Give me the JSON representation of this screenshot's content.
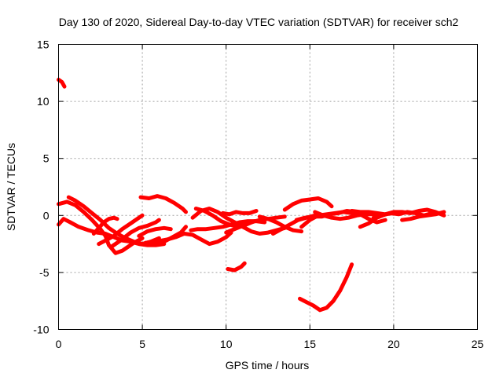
{
  "chart_data": {
    "type": "scatter",
    "title": "Day 130 of 2020, Sidereal Day-to-day VTEC variation (SDTVAR) for receiver sch2",
    "xlabel": "GPS time / hours",
    "ylabel": "SDTVAR / TECUs",
    "xlim": [
      0,
      25
    ],
    "ylim": [
      -10,
      15
    ],
    "xticks": [
      "0",
      "5",
      "10",
      "15",
      "20",
      "25"
    ],
    "yticks": [
      "-10",
      "-5",
      "0",
      "5",
      "10",
      "15"
    ],
    "grid": true,
    "legend": "none",
    "color": "#ff0000",
    "series": [
      {
        "name": "arc-1",
        "points": [
          [
            0.0,
            11.9
          ],
          [
            0.2,
            11.7
          ],
          [
            0.35,
            11.3
          ]
        ]
      },
      {
        "name": "arc-2",
        "points": [
          [
            0.0,
            1.0
          ],
          [
            0.5,
            1.2
          ],
          [
            1.0,
            0.9
          ],
          [
            1.5,
            0.3
          ],
          [
            2.0,
            -0.4
          ],
          [
            2.5,
            -1.2
          ],
          [
            2.8,
            -1.8
          ],
          [
            3.0,
            -2.6
          ],
          [
            3.4,
            -3.3
          ],
          [
            3.8,
            -3.1
          ],
          [
            4.2,
            -2.7
          ],
          [
            4.5,
            -2.4
          ],
          [
            5.0,
            -2.0
          ]
        ]
      },
      {
        "name": "arc-3",
        "points": [
          [
            0.6,
            1.6
          ],
          [
            1.0,
            1.3
          ],
          [
            1.5,
            0.8
          ],
          [
            2.0,
            0.2
          ],
          [
            2.5,
            -0.4
          ],
          [
            3.0,
            -1.1
          ],
          [
            3.5,
            -1.6
          ],
          [
            4.0,
            -2.0
          ],
          [
            4.5,
            -2.3
          ],
          [
            5.0,
            -2.5
          ],
          [
            5.5,
            -2.3
          ],
          [
            6.0,
            -2.0
          ]
        ]
      },
      {
        "name": "arc-4",
        "points": [
          [
            0.0,
            -0.8
          ],
          [
            0.3,
            -0.3
          ],
          [
            0.7,
            -0.6
          ],
          [
            1.2,
            -1.0
          ],
          [
            1.8,
            -1.3
          ],
          [
            2.3,
            -1.5
          ],
          [
            2.8,
            -1.6
          ],
          [
            3.3,
            -1.9
          ],
          [
            3.8,
            -2.2
          ],
          [
            4.3,
            -2.3
          ],
          [
            4.8,
            -2.5
          ],
          [
            5.3,
            -2.6
          ],
          [
            5.8,
            -2.6
          ],
          [
            6.3,
            -2.5
          ]
        ]
      },
      {
        "name": "arc-5",
        "points": [
          [
            2.1,
            -1.6
          ],
          [
            2.4,
            -1.1
          ],
          [
            2.7,
            -0.6
          ],
          [
            3.0,
            -0.3
          ],
          [
            3.3,
            -0.2
          ],
          [
            3.5,
            -0.3
          ]
        ]
      },
      {
        "name": "arc-6",
        "points": [
          [
            2.4,
            -2.5
          ],
          [
            2.8,
            -2.2
          ],
          [
            3.3,
            -1.8
          ],
          [
            3.8,
            -1.2
          ],
          [
            4.3,
            -0.7
          ],
          [
            4.8,
            -0.2
          ],
          [
            5.0,
            0.0
          ]
        ]
      },
      {
        "name": "arc-7",
        "points": [
          [
            3.2,
            -2.7
          ],
          [
            3.7,
            -2.2
          ],
          [
            4.3,
            -1.5
          ],
          [
            4.8,
            -1.1
          ],
          [
            5.3,
            -0.9
          ],
          [
            5.8,
            -0.6
          ],
          [
            6.0,
            -0.4
          ]
        ]
      },
      {
        "name": "arc-8",
        "points": [
          [
            4.8,
            -1.8
          ],
          [
            5.3,
            -1.4
          ],
          [
            5.8,
            -1.2
          ],
          [
            6.3,
            -1.1
          ],
          [
            6.7,
            -1.2
          ]
        ]
      },
      {
        "name": "arc-9",
        "points": [
          [
            4.9,
            1.6
          ],
          [
            5.4,
            1.5
          ],
          [
            5.9,
            1.7
          ],
          [
            6.4,
            1.5
          ],
          [
            6.9,
            1.1
          ],
          [
            7.4,
            0.6
          ],
          [
            7.6,
            0.3
          ]
        ]
      },
      {
        "name": "arc-10",
        "points": [
          [
            5.2,
            -2.4
          ],
          [
            5.8,
            -2.3
          ],
          [
            6.5,
            -2.1
          ],
          [
            7.0,
            -1.9
          ],
          [
            7.5,
            -1.6
          ],
          [
            8.0,
            -1.7
          ],
          [
            8.5,
            -2.1
          ],
          [
            9.0,
            -2.5
          ],
          [
            9.5,
            -2.3
          ],
          [
            10.0,
            -1.9
          ],
          [
            10.3,
            -1.5
          ]
        ]
      },
      {
        "name": "arc-11",
        "points": [
          [
            6.3,
            -2.3
          ],
          [
            6.8,
            -1.9
          ],
          [
            7.3,
            -1.5
          ],
          [
            7.6,
            -1.0
          ]
        ]
      },
      {
        "name": "arc-12",
        "points": [
          [
            7.9,
            -1.3
          ],
          [
            8.3,
            -1.2
          ],
          [
            8.8,
            -1.2
          ],
          [
            9.3,
            -1.1
          ],
          [
            9.8,
            -1.0
          ],
          [
            10.3,
            -0.8
          ],
          [
            10.8,
            -0.6
          ],
          [
            11.3,
            -0.5
          ],
          [
            11.8,
            -0.5
          ],
          [
            12.3,
            -0.6
          ]
        ]
      },
      {
        "name": "arc-13",
        "points": [
          [
            8.0,
            -0.2
          ],
          [
            8.5,
            0.4
          ],
          [
            9.0,
            0.6
          ],
          [
            9.5,
            0.3
          ],
          [
            10.0,
            -0.2
          ],
          [
            10.5,
            -0.6
          ],
          [
            11.0,
            -1.0
          ],
          [
            11.5,
            -1.4
          ],
          [
            12.0,
            -1.6
          ],
          [
            12.5,
            -1.5
          ],
          [
            13.0,
            -1.3
          ],
          [
            13.5,
            -1.1
          ]
        ]
      },
      {
        "name": "arc-14",
        "points": [
          [
            8.2,
            0.6
          ],
          [
            8.7,
            0.4
          ],
          [
            9.2,
            0.0
          ],
          [
            9.7,
            -0.5
          ],
          [
            10.2,
            -0.8
          ],
          [
            10.7,
            -1.0
          ],
          [
            11.2,
            -0.8
          ],
          [
            11.7,
            -0.5
          ]
        ]
      },
      {
        "name": "arc-15",
        "points": [
          [
            9.8,
            0.2
          ],
          [
            10.2,
            0.1
          ],
          [
            10.6,
            0.3
          ],
          [
            11.0,
            0.2
          ],
          [
            11.4,
            0.2
          ],
          [
            11.8,
            0.4
          ]
        ]
      },
      {
        "name": "arc-16",
        "points": [
          [
            10.0,
            -1.5
          ],
          [
            10.5,
            -1.2
          ],
          [
            11.0,
            -0.9
          ],
          [
            11.5,
            -0.6
          ],
          [
            12.0,
            -0.4
          ],
          [
            12.5,
            -0.3
          ],
          [
            13.0,
            -0.2
          ],
          [
            13.5,
            -0.1
          ]
        ]
      },
      {
        "name": "arc-17",
        "points": [
          [
            12.0,
            -0.1
          ],
          [
            12.5,
            -0.3
          ],
          [
            13.0,
            -0.6
          ],
          [
            13.5,
            -1.0
          ],
          [
            14.0,
            -1.3
          ],
          [
            14.5,
            -1.4
          ]
        ]
      },
      {
        "name": "arc-18",
        "points": [
          [
            12.8,
            -1.6
          ],
          [
            13.3,
            -1.2
          ],
          [
            13.8,
            -0.8
          ],
          [
            14.3,
            -0.4
          ],
          [
            14.8,
            -0.2
          ],
          [
            15.3,
            0.0
          ]
        ]
      },
      {
        "name": "arc-19",
        "points": [
          [
            13.5,
            0.5
          ],
          [
            14.0,
            1.0
          ],
          [
            14.5,
            1.3
          ],
          [
            15.0,
            1.4
          ],
          [
            15.5,
            1.5
          ],
          [
            16.0,
            1.2
          ],
          [
            16.3,
            0.8
          ]
        ]
      },
      {
        "name": "arc-20",
        "points": [
          [
            14.5,
            -1.0
          ],
          [
            15.0,
            -0.4
          ],
          [
            15.5,
            0.0
          ],
          [
            16.0,
            0.1
          ],
          [
            16.5,
            0.2
          ],
          [
            17.0,
            0.3
          ],
          [
            17.5,
            0.2
          ],
          [
            18.0,
            0.1
          ],
          [
            18.5,
            -0.3
          ],
          [
            19.0,
            -0.6
          ],
          [
            19.5,
            -0.4
          ]
        ]
      },
      {
        "name": "arc-21",
        "points": [
          [
            14.2,
            -0.4
          ],
          [
            14.7,
            -0.2
          ],
          [
            15.2,
            -0.1
          ],
          [
            15.7,
            -0.1
          ],
          [
            16.2,
            0.1
          ],
          [
            16.7,
            0.2
          ],
          [
            17.2,
            0.4
          ],
          [
            17.7,
            0.3
          ],
          [
            18.2,
            0.0
          ]
        ]
      },
      {
        "name": "arc-22",
        "points": [
          [
            15.3,
            0.3
          ],
          [
            15.8,
            0.0
          ],
          [
            16.3,
            -0.2
          ],
          [
            16.8,
            -0.3
          ],
          [
            17.3,
            -0.2
          ],
          [
            17.8,
            0.0
          ],
          [
            18.3,
            0.1
          ],
          [
            18.8,
            0.1
          ],
          [
            19.3,
            0.0
          ]
        ]
      },
      {
        "name": "arc-23",
        "points": [
          [
            17.5,
            0.4
          ],
          [
            18.0,
            0.3
          ],
          [
            18.5,
            0.3
          ],
          [
            19.0,
            0.2
          ],
          [
            19.5,
            0.1
          ],
          [
            20.0,
            0.3
          ],
          [
            20.5,
            0.3
          ],
          [
            21.0,
            0.2
          ],
          [
            21.5,
            0.4
          ],
          [
            22.0,
            0.5
          ],
          [
            22.5,
            0.3
          ],
          [
            23.0,
            0.0
          ]
        ]
      },
      {
        "name": "arc-24",
        "points": [
          [
            18.8,
            -0.2
          ],
          [
            19.3,
            0.0
          ],
          [
            19.8,
            0.2
          ],
          [
            20.3,
            0.1
          ],
          [
            20.8,
            0.3
          ],
          [
            21.3,
            0.2
          ],
          [
            21.8,
            0.0
          ],
          [
            22.3,
            0.2
          ],
          [
            22.8,
            0.2
          ]
        ]
      },
      {
        "name": "arc-25",
        "points": [
          [
            18.0,
            -1.0
          ],
          [
            18.5,
            -0.7
          ],
          [
            19.0,
            -0.2
          ],
          [
            19.5,
            0.1
          ],
          [
            20.0,
            0.2
          ]
        ]
      },
      {
        "name": "arc-26",
        "points": [
          [
            20.5,
            -0.4
          ],
          [
            21.0,
            -0.3
          ],
          [
            21.5,
            -0.1
          ],
          [
            22.0,
            0.0
          ],
          [
            22.5,
            0.1
          ],
          [
            23.0,
            0.3
          ]
        ]
      },
      {
        "name": "arc-27",
        "points": [
          [
            10.1,
            -4.7
          ],
          [
            10.5,
            -4.8
          ],
          [
            10.9,
            -4.5
          ],
          [
            11.1,
            -4.2
          ]
        ]
      },
      {
        "name": "arc-28",
        "points": [
          [
            14.4,
            -7.3
          ],
          [
            14.8,
            -7.6
          ],
          [
            15.2,
            -7.9
          ],
          [
            15.6,
            -8.3
          ],
          [
            16.0,
            -8.1
          ],
          [
            16.4,
            -7.5
          ],
          [
            16.8,
            -6.6
          ],
          [
            17.2,
            -5.4
          ],
          [
            17.5,
            -4.3
          ]
        ]
      }
    ]
  }
}
